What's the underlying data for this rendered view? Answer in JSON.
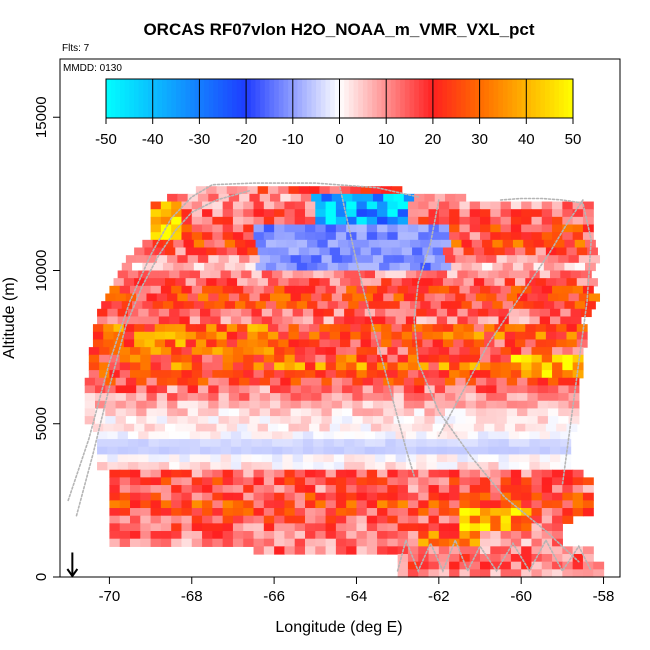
{
  "chart_data": {
    "type": "heatmap",
    "title": "ORCAS RF07vlon H2O_NOAA_m_VMR_VXL_pct",
    "corner_labels": {
      "flights": "Flts: 7",
      "mmdd": "MMDD: 0130"
    },
    "xlabel": "Longitude (deg E)",
    "ylabel": "Altitude (m)",
    "xlim": [
      -71.2,
      -57.6
    ],
    "ylim": [
      0,
      16900
    ],
    "x_ticks": [
      -70,
      -68,
      -66,
      -64,
      -62,
      -60,
      -58
    ],
    "x_tick_labels": [
      "-70",
      "-68",
      "-66",
      "-64",
      "-62",
      "-60",
      "-58"
    ],
    "y_ticks": [
      0,
      5000,
      10000,
      15000
    ],
    "y_tick_labels": [
      "0",
      "5000",
      "10000",
      "15000"
    ],
    "colorbar": {
      "min": -50,
      "max": 50,
      "ticks": [
        -50,
        -40,
        -30,
        -20,
        -10,
        0,
        10,
        20,
        30,
        40,
        50
      ],
      "tick_labels": [
        "-50",
        "-40",
        "-30",
        "-20",
        "-10",
        "0",
        "10",
        "20",
        "30",
        "40",
        "50"
      ],
      "stops": [
        {
          "value": -50,
          "color": "#00ffff"
        },
        {
          "value": -20,
          "color": "#1f3cff"
        },
        {
          "value": 0,
          "color": "#ffffff"
        },
        {
          "value": 20,
          "color": "#ff2020"
        },
        {
          "value": 30,
          "color": "#ff6a00"
        },
        {
          "value": 50,
          "color": "#ffff00"
        }
      ]
    },
    "cell": {
      "dx": 0.25,
      "dy": 250
    },
    "bands": [
      {
        "alt": 12750,
        "lon_min": -67.9,
        "lon_max": -63.0,
        "value": 15
      },
      {
        "alt": 12500,
        "lon_min": -68.6,
        "lon_max": -61.5,
        "value": 10
      },
      {
        "alt": 12250,
        "lon_min": -69.0,
        "lon_max": -58.3,
        "value": 10
      },
      {
        "alt": 12000,
        "lon_min": -69.0,
        "lon_max": -58.3,
        "value": 14
      },
      {
        "alt": 11750,
        "lon_min": -69.0,
        "lon_max": -58.3,
        "value": 16
      },
      {
        "alt": 11500,
        "lon_min": -69.0,
        "lon_max": -58.3,
        "value": 20
      },
      {
        "alt": 11250,
        "lon_min": -69.0,
        "lon_max": -58.3,
        "value": 18
      },
      {
        "alt": 11000,
        "lon_min": -69.2,
        "lon_max": -58.3,
        "value": 22
      },
      {
        "alt": 10750,
        "lon_min": -69.4,
        "lon_max": -58.3,
        "value": 16
      },
      {
        "alt": 10500,
        "lon_min": -69.6,
        "lon_max": -58.3,
        "value": 10
      },
      {
        "alt": 10250,
        "lon_min": -69.7,
        "lon_max": -58.3,
        "value": 5
      },
      {
        "alt": 10000,
        "lon_min": -69.8,
        "lon_max": -58.3,
        "value": 10
      },
      {
        "alt": 9750,
        "lon_min": -69.9,
        "lon_max": -58.3,
        "value": 14
      },
      {
        "alt": 9500,
        "lon_min": -70.0,
        "lon_max": -58.3,
        "value": 20
      },
      {
        "alt": 9250,
        "lon_min": -70.1,
        "lon_max": -58.3,
        "value": 22
      },
      {
        "alt": 9000,
        "lon_min": -70.2,
        "lon_max": -58.4,
        "value": 20
      },
      {
        "alt": 8750,
        "lon_min": -70.3,
        "lon_max": -58.4,
        "value": 14
      },
      {
        "alt": 8500,
        "lon_min": -70.3,
        "lon_max": -58.6,
        "value": 12
      },
      {
        "alt": 8250,
        "lon_min": -70.4,
        "lon_max": -58.6,
        "value": 22
      },
      {
        "alt": 8000,
        "lon_min": -70.4,
        "lon_max": -58.6,
        "value": 26
      },
      {
        "alt": 7750,
        "lon_min": -70.4,
        "lon_max": -58.6,
        "value": 20
      },
      {
        "alt": 7500,
        "lon_min": -70.5,
        "lon_max": -58.6,
        "value": 18
      },
      {
        "alt": 7250,
        "lon_min": -70.5,
        "lon_max": -58.6,
        "value": 24
      },
      {
        "alt": 7000,
        "lon_min": -70.5,
        "lon_max": -58.6,
        "value": 28
      },
      {
        "alt": 6750,
        "lon_min": -70.5,
        "lon_max": -58.6,
        "value": 22
      },
      {
        "alt": 6500,
        "lon_min": -70.6,
        "lon_max": -58.6,
        "value": 20
      },
      {
        "alt": 6250,
        "lon_min": -70.6,
        "lon_max": -58.6,
        "value": 12
      },
      {
        "alt": 6000,
        "lon_min": -70.6,
        "lon_max": -58.6,
        "value": 10
      },
      {
        "alt": 5750,
        "lon_min": -70.6,
        "lon_max": -58.6,
        "value": 6
      },
      {
        "alt": 5500,
        "lon_min": -70.6,
        "lon_max": -58.6,
        "value": 4
      },
      {
        "alt": 5250,
        "lon_min": -70.6,
        "lon_max": -58.6,
        "value": 2
      },
      {
        "alt": 5000,
        "lon_min": -70.4,
        "lon_max": -58.8,
        "value": 2
      },
      {
        "alt": 4750,
        "lon_min": -70.3,
        "lon_max": -58.8,
        "value": 0
      },
      {
        "alt": 4500,
        "lon_min": -70.3,
        "lon_max": -59.0,
        "value": -4
      },
      {
        "alt": 4250,
        "lon_min": -70.3,
        "lon_max": -59.0,
        "value": -5
      },
      {
        "alt": 4000,
        "lon_min": -70.3,
        "lon_max": -59.0,
        "value": 0
      },
      {
        "alt": 3750,
        "lon_min": -70.3,
        "lon_max": -58.8,
        "value": 2
      },
      {
        "alt": 3500,
        "lon_min": -70.0,
        "lon_max": -58.6,
        "value": 14
      },
      {
        "alt": 3250,
        "lon_min": -70.0,
        "lon_max": -58.4,
        "value": 18
      },
      {
        "alt": 3000,
        "lon_min": -70.0,
        "lon_max": -58.4,
        "value": 14
      },
      {
        "alt": 2750,
        "lon_min": -70.0,
        "lon_max": -58.4,
        "value": 20
      },
      {
        "alt": 2500,
        "lon_min": -70.0,
        "lon_max": -58.4,
        "value": 22
      },
      {
        "alt": 2250,
        "lon_min": -70.0,
        "lon_max": -58.4,
        "value": 20
      },
      {
        "alt": 2000,
        "lon_min": -70.0,
        "lon_max": -58.8,
        "value": 16
      },
      {
        "alt": 1750,
        "lon_min": -70.0,
        "lon_max": -59.0,
        "value": 14
      },
      {
        "alt": 1500,
        "lon_min": -70.0,
        "lon_max": -59.0,
        "value": 12
      },
      {
        "alt": 1250,
        "lon_min": -70.0,
        "lon_max": -59.0,
        "value": 10
      },
      {
        "alt": 1000,
        "lon_min": -66.5,
        "lon_max": -58.3,
        "value": 12
      },
      {
        "alt": 750,
        "lon_min": -63.0,
        "lon_max": -58.3,
        "value": 14
      },
      {
        "alt": 500,
        "lon_min": -63.0,
        "lon_max": -58.0,
        "value": 14
      },
      {
        "alt": 250,
        "lon_min": -63.0,
        "lon_max": -58.0,
        "value": 10
      }
    ],
    "features": [
      {
        "name": "upper-dry-core",
        "lon_min": -65.0,
        "lon_max": -62.7,
        "alt_min": 10200,
        "alt_max": 12500,
        "value": -38
      },
      {
        "name": "upper-dry-halo",
        "lon_min": -66.4,
        "lon_max": -61.8,
        "alt_min": 9900,
        "alt_max": 11600,
        "value": -12
      },
      {
        "name": "west-upper-edge-moist",
        "lon_min": -69.0,
        "lon_max": -68.2,
        "alt_min": 11000,
        "alt_max": 12300,
        "value": 42
      },
      {
        "name": "east-mid-moist",
        "lon_min": -60.2,
        "lon_max": -58.6,
        "alt_min": 6600,
        "alt_max": 7300,
        "value": 40
      },
      {
        "name": "east-low-moist",
        "lon_min": -61.4,
        "lon_max": -59.8,
        "alt_min": 1500,
        "alt_max": 2200,
        "value": 42
      },
      {
        "name": "lower-low-moist",
        "lon_min": -62.4,
        "lon_max": -61.0,
        "alt_min": 1000,
        "alt_max": 1600,
        "value": 30
      },
      {
        "name": "mid-west-moist",
        "lon_min": -70.0,
        "lon_max": -66.0,
        "alt_min": 7200,
        "alt_max": 8200,
        "value": 30
      }
    ],
    "flight_tracks": [
      {
        "lon": [
          -71.0,
          -70.5,
          -70.0,
          -69.5,
          -69.0,
          -68.5,
          -68.0,
          -67.5,
          -66.5,
          -65.0,
          -63.5,
          -62.5
        ],
        "alt": [
          2500,
          4500,
          7000,
          9000,
          10500,
          11700,
          12400,
          12800,
          12850,
          12850,
          12700,
          12400
        ]
      },
      {
        "lon": [
          -70.8,
          -70.4,
          -70.0,
          -69.6,
          -69.2,
          -68.8,
          -68.4,
          -68.0,
          -67.4,
          -66.6
        ],
        "alt": [
          2000,
          4000,
          6200,
          8200,
          9500,
          10500,
          11300,
          11900,
          12300,
          12600
        ]
      },
      {
        "lon": [
          -64.4,
          -64.2,
          -64.0,
          -63.8,
          -63.6,
          -63.4,
          -63.2,
          -63.0,
          -62.8,
          -62.6
        ],
        "alt": [
          12700,
          11500,
          10300,
          9200,
          8200,
          7200,
          6200,
          5200,
          4200,
          3300
        ]
      },
      {
        "lon": [
          -62.0,
          -62.2,
          -62.5,
          -62.6,
          -62.5,
          -62.0,
          -61.2,
          -60.4,
          -59.4,
          -58.6
        ],
        "alt": [
          12300,
          10900,
          9600,
          8400,
          7000,
          5400,
          3900,
          2600,
          1500,
          500
        ]
      },
      {
        "lon": [
          -60.5,
          -60.0,
          -59.5,
          -59.0,
          -58.5,
          -58.3,
          -58.4,
          -58.6,
          -58.8,
          -59.0
        ],
        "alt": [
          12300,
          12350,
          12350,
          12300,
          12200,
          11000,
          9000,
          7000,
          5000,
          3000
        ]
      },
      {
        "lon": [
          -58.5,
          -58.9,
          -59.3,
          -59.8,
          -60.3,
          -60.8,
          -61.2,
          -61.6,
          -62.0
        ],
        "alt": [
          12300,
          11500,
          10600,
          9600,
          8600,
          7600,
          6600,
          5600,
          4600
        ]
      },
      {
        "lon": [
          -63.0,
          -62.8,
          -62.5,
          -62.2,
          -61.9,
          -61.6,
          -61.3,
          -61.0,
          -60.6,
          -60.2,
          -59.8,
          -59.4,
          -59.0,
          -58.6,
          -58.3
        ],
        "alt": [
          200,
          1200,
          200,
          1100,
          200,
          1200,
          200,
          1000,
          200,
          1100,
          200,
          1200,
          200,
          1000,
          200
        ]
      }
    ],
    "arrow": {
      "lon": -70.9,
      "from_alt": 800,
      "to_alt": 0
    }
  }
}
